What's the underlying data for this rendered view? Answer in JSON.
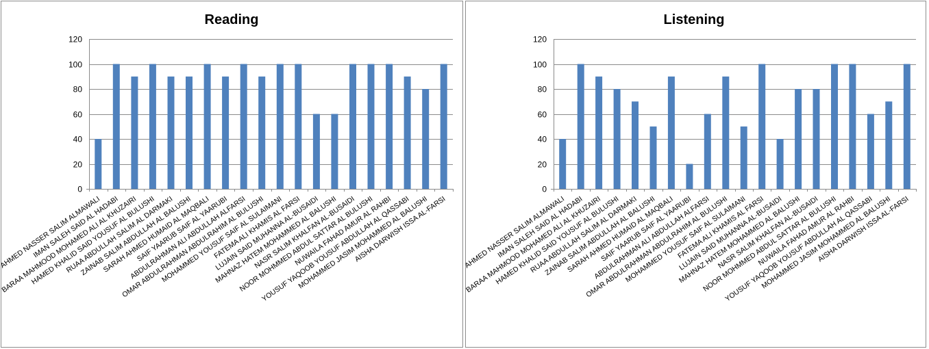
{
  "chart_data": [
    {
      "type": "bar",
      "title": "Reading",
      "ylim": [
        0,
        120
      ],
      "yticks": [
        0,
        20,
        40,
        60,
        80,
        100,
        120
      ],
      "grid": true,
      "bar_color": "#4f81bd",
      "categories": [
        "AHMED NASSER SALIM ALMAWALI",
        "IMAN SALEH SAID AL HADABI",
        "BARAA MAHMOOD MOHAMED ALI AL KHUZAIRI",
        "HAMED KHALID SAID YOUSUF AL BULUSHI",
        "RUAA ABDULLAH SALIM AL DARMAKI",
        "ZAINAB SALIM ABDULLAH AL BALUSHI",
        "SARAH AHMED HUMAID AL MAQBALI",
        "SAIF YAARUB SAIF AL YAARUBI",
        "ABDULRAHMAN ALI ABDULLAH ALFARSI",
        "OMAR ABDULRAHMAN ABDULRAHIM AL BULUSHI",
        "MOHAMMED YOUSUF SAIF AL SULAIMANI",
        "FATEMA ALI KHAMIS AL FARSI",
        "LUJAIN SAID MUHANNA AL-BUSAIDI",
        "MAHNAZ HATEM MOHAMMED AL BALUSHI",
        "NASR SALIM KHALFAN AL-BUSAIDI",
        "NOOR MOHMMED ABDUL SATTAR AL BULUSHI",
        "NUWAILA FAHAD AMUR AL RAHBI",
        "YOUSUF YAQOOB YOUSUF ABDULLAH AL QASSABI",
        "MOHAMMED JASIM MOHAMMED AL BALUSHI",
        "AISHA DARWISH ISSA AL-FARSI"
      ],
      "values": [
        40,
        100,
        90,
        100,
        90,
        90,
        100,
        90,
        100,
        90,
        100,
        100,
        60,
        60,
        100,
        100,
        100,
        90,
        80,
        100
      ]
    },
    {
      "type": "bar",
      "title": "Listening",
      "ylim": [
        0,
        120
      ],
      "yticks": [
        0,
        20,
        40,
        60,
        80,
        100,
        120
      ],
      "grid": true,
      "bar_color": "#4f81bd",
      "categories": [
        "AHMED NASSER SALIM ALMAWALI",
        "IMAN SALEH SAID AL HADABI",
        "BARAA MAHMOOD MOHAMED ALI AL KHUZAIRI",
        "HAMED KHALID SAID YOUSUF AL BULUSHI",
        "RUAA ABDULLAH SALIM AL DARMAKI",
        "ZAINAB SALIM ABDULLAH AL BALUSHI",
        "SARAH AHMED HUMAID AL MAQBALI",
        "SAIF YAARUB SAIF AL YAARUBI",
        "ABDULRAHMAN ALI ABDULLAH ALFARSI",
        "OMAR ABDULRAHMAN ABDULRAHIM AL BULUSHI",
        "MOHAMMED YOUSUF SAIF AL SULAIMANI",
        "FATEMA ALI KHAMIS AL FARSI",
        "LUJAIN SAID MUHANNA AL-BUSAIDI",
        "MAHNAZ HATEM MOHAMMED AL BALUSHI",
        "NASR SALIM KHALFAN AL-BUSAIDI",
        "NOOR MOHMMED ABDUL SATTAR AL BULUSHI",
        "NUWAILA FAHAD AMUR AL RAHBI",
        "YOUSUF YAQOOB YOUSUF ABDULLAH AL QASSABI",
        "MOHAMMED JASIM MOHAMMED AL BALUSHI",
        "AISHA DARWISH ISSA AL-FARSI"
      ],
      "values": [
        40,
        100,
        90,
        80,
        70,
        50,
        90,
        20,
        60,
        90,
        50,
        100,
        40,
        80,
        80,
        100,
        100,
        60,
        70,
        100
      ]
    }
  ]
}
